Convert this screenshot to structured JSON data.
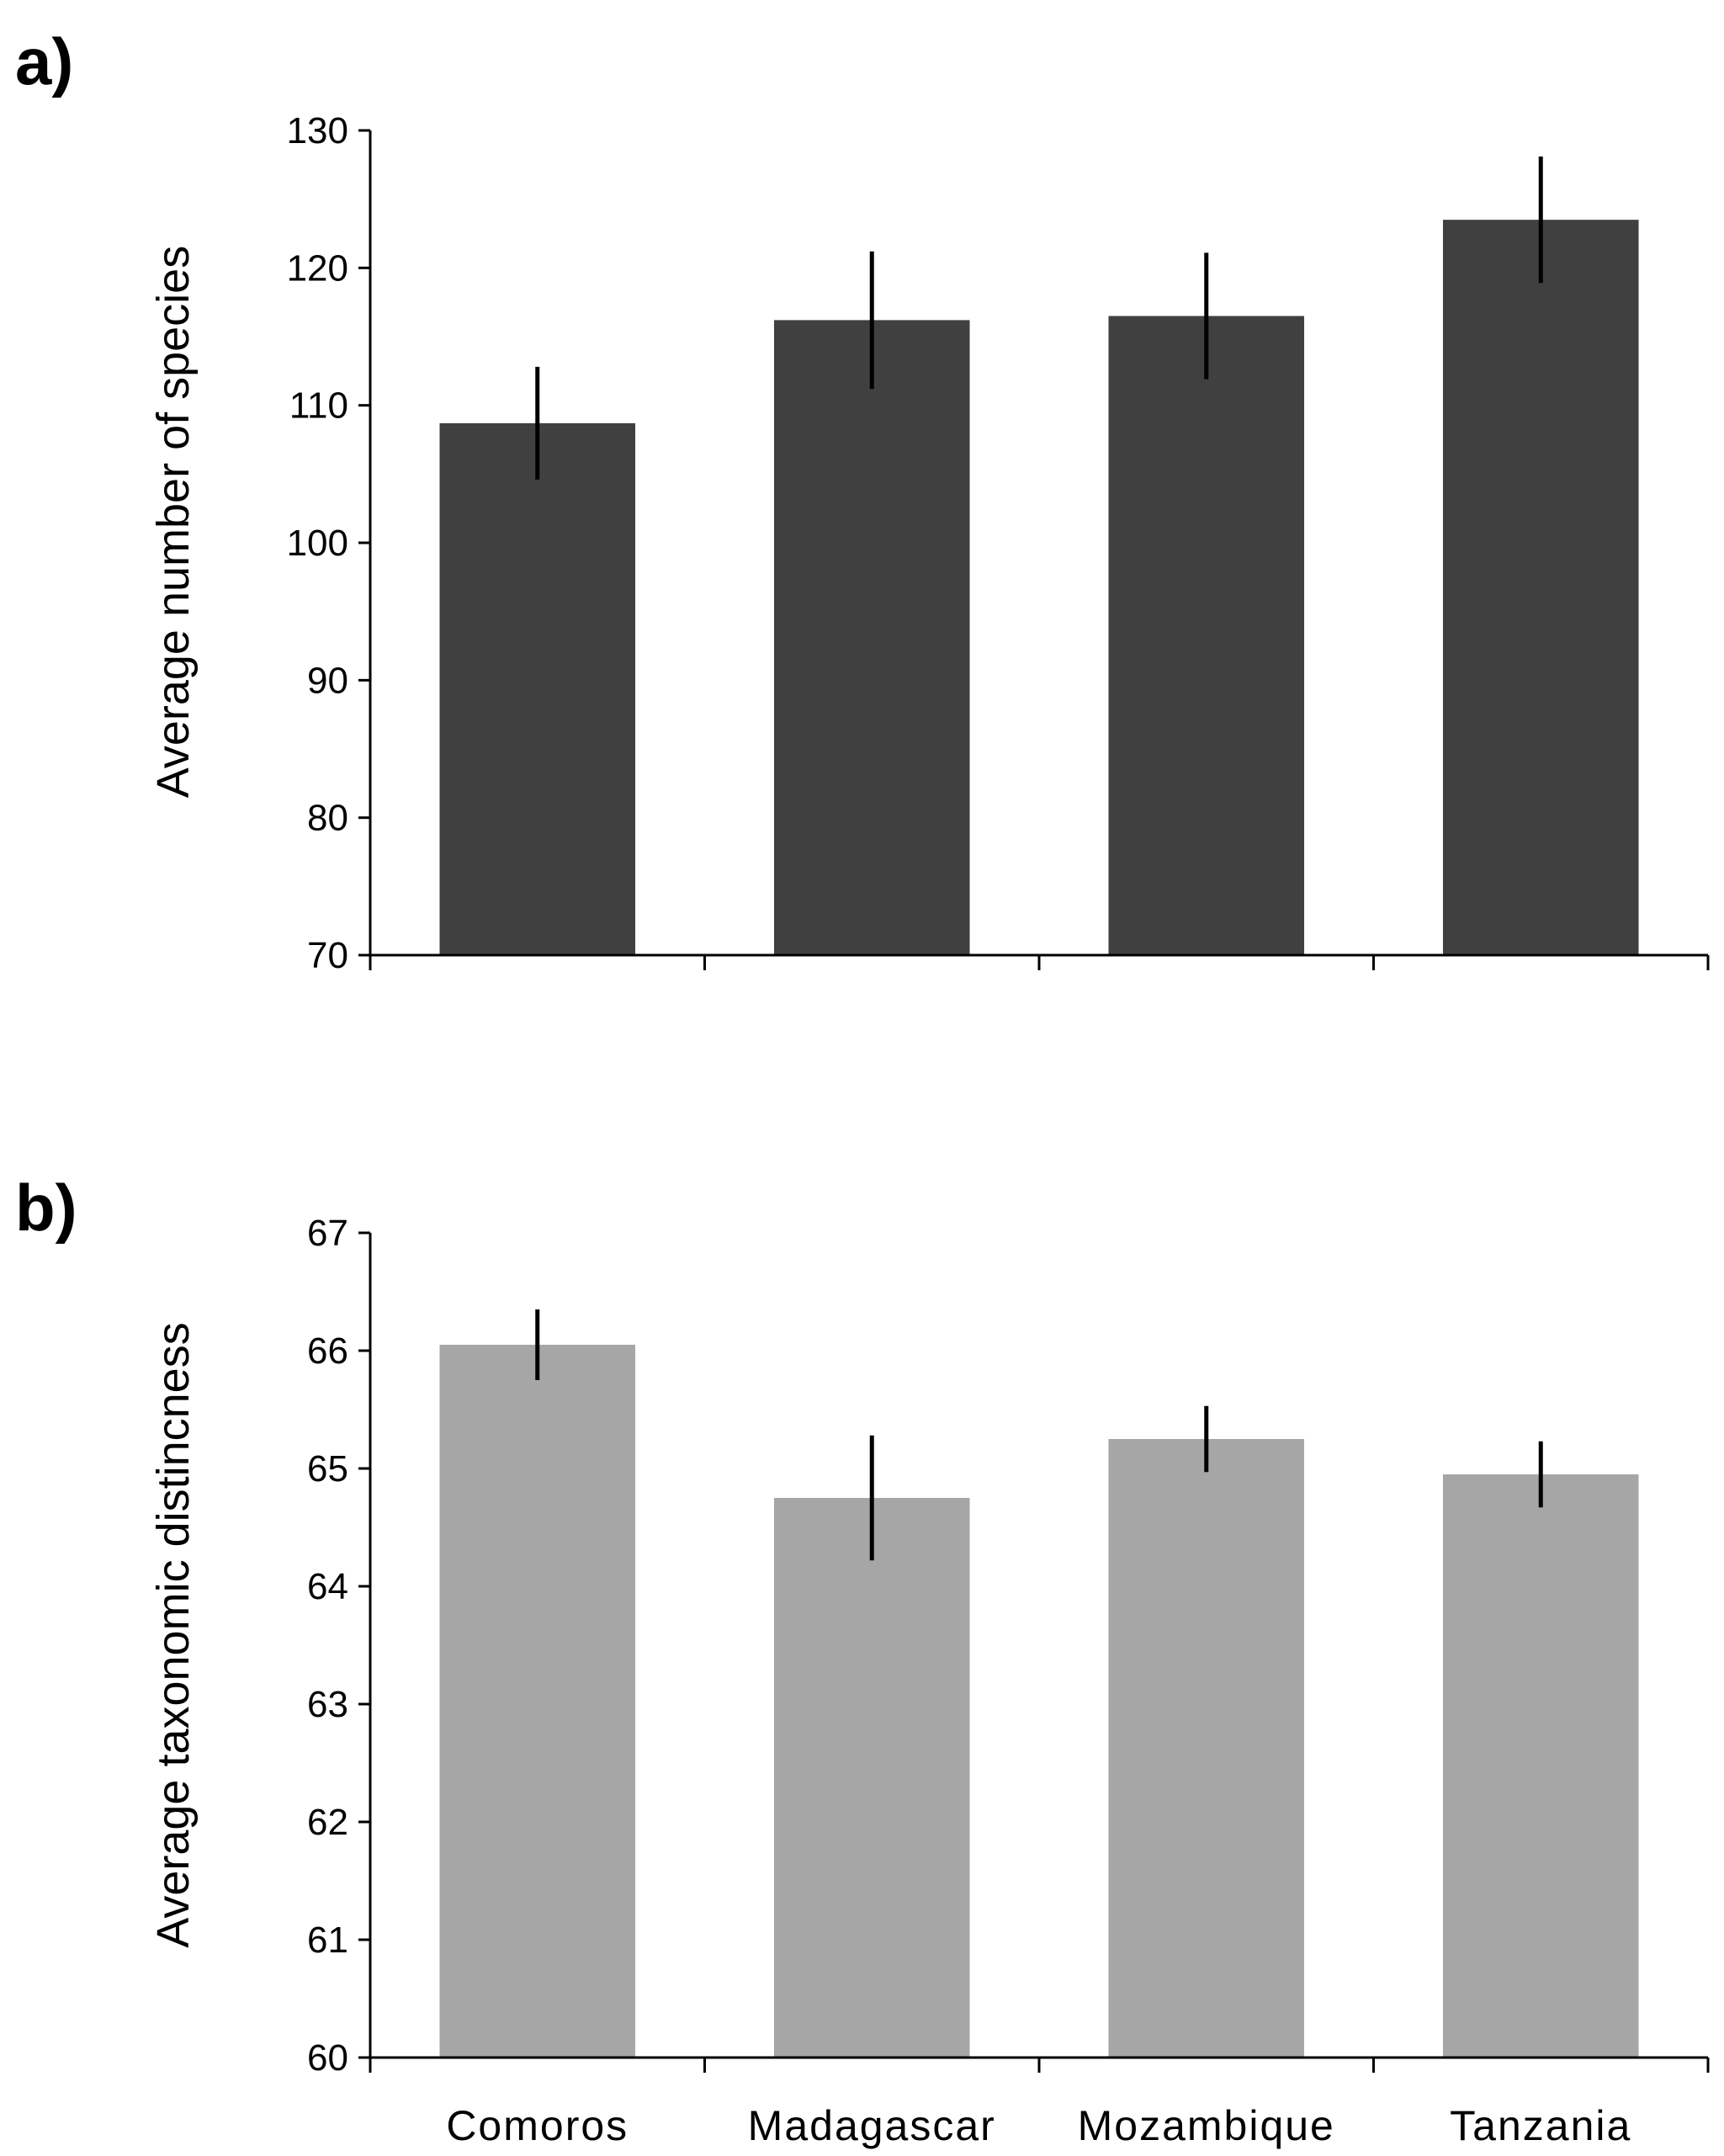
{
  "chart_data": [
    {
      "type": "bar",
      "panel_label": "a)",
      "title": "",
      "categories": [
        "Comoros",
        "Madagascar",
        "Mozambique",
        "Tanzania"
      ],
      "values": [
        108.7,
        116.2,
        116.5,
        123.5
      ],
      "error": [
        4.1,
        5.0,
        4.6,
        4.6
      ],
      "ylabel": "Average  number of species",
      "xlabel": "",
      "ylim": [
        70,
        130
      ],
      "yticks": [
        70,
        80,
        90,
        100,
        110,
        120,
        130
      ],
      "color": "#404040",
      "show_category_labels": false
    },
    {
      "type": "bar",
      "panel_label": "b)",
      "title": "",
      "categories": [
        "Comoros",
        "Madagascar",
        "Mozambique",
        "Tanzania"
      ],
      "values": [
        66.05,
        64.75,
        65.25,
        64.95
      ],
      "error": [
        0.3,
        0.53,
        0.28,
        0.28
      ],
      "ylabel": "Average  taxonomic distincness",
      "xlabel": "",
      "ylim": [
        60,
        67
      ],
      "yticks": [
        60,
        61,
        62,
        63,
        64,
        65,
        66,
        67
      ],
      "color": "#a6a6a6",
      "show_category_labels": true
    }
  ],
  "colors": {
    "axis": "#000000",
    "error_bar": "#000000"
  }
}
